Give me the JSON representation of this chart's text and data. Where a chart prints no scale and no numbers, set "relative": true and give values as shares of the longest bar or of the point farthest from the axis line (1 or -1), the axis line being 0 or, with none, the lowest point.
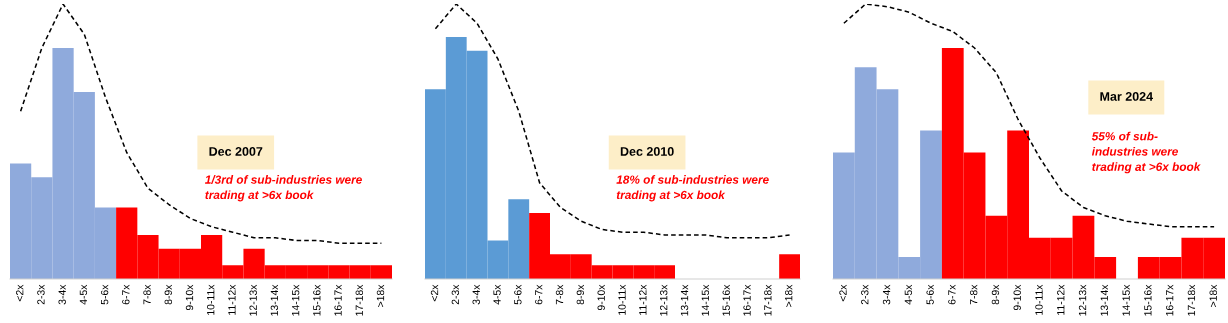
{
  "chart_data": [
    {
      "type": "bar",
      "relative": true,
      "categories": [
        "<2x",
        "2-3x",
        "3-4x",
        "4-5x",
        "5-6x",
        "6-7x",
        "7-8x",
        "8-9x",
        "9-10x",
        "10-11x",
        "11-12x",
        "12-13x",
        "13-14x",
        "14-15x",
        "15-16x",
        "16-17x",
        "17-18x",
        ">18x"
      ],
      "series": [
        {
          "values": [
            0.42,
            0.37,
            0.84,
            0.68,
            0.26,
            0.26,
            0.16,
            0.11,
            0.11,
            0.16,
            0.05,
            0.11,
            0.05,
            0.05,
            0.05,
            0.05,
            0.05,
            0.05
          ],
          "colors": [
            "#8faadc",
            "#8faadc",
            "#8faadc",
            "#8faadc",
            "#8faadc",
            "#ff0000",
            "#ff0000",
            "#ff0000",
            "#ff0000",
            "#ff0000",
            "#ff0000",
            "#ff0000",
            "#ff0000",
            "#ff0000",
            "#ff0000",
            "#ff0000",
            "#ff0000",
            "#ff0000"
          ]
        },
        {
          "type": "line",
          "color": "#000000",
          "line_style": "dashed",
          "values": [
            0.61,
            0.84,
            1.0,
            0.89,
            0.66,
            0.46,
            0.33,
            0.27,
            0.22,
            0.19,
            0.17,
            0.15,
            0.15,
            0.14,
            0.14,
            0.13,
            0.13,
            0.13
          ]
        }
      ],
      "annotations": [
        "Dec 2007",
        "1/3rd of sub-industries were\ntrading at >6x book"
      ]
    },
    {
      "type": "bar",
      "relative": true,
      "categories": [
        "<2x",
        "2-3x",
        "3-4x",
        "4-5x",
        "5-6x",
        "6-7x",
        "7-8x",
        "8-9x",
        "9-10x",
        "10-11x",
        "11-12x",
        "12-13x",
        "13-14x",
        "14-15x",
        "15-16x",
        "16-17x",
        "17-18x",
        ">18x"
      ],
      "series": [
        {
          "values": [
            0.69,
            0.88,
            0.83,
            0.14,
            0.29,
            0.24,
            0.09,
            0.09,
            0.05,
            0.05,
            0.05,
            0.05,
            0,
            0,
            0,
            0,
            0,
            0.09
          ],
          "colors": [
            "#5b9bd5",
            "#5b9bd5",
            "#5b9bd5",
            "#5b9bd5",
            "#5b9bd5",
            "#ff0000",
            "#ff0000",
            "#ff0000",
            "#ff0000",
            "#ff0000",
            "#ff0000",
            "#ff0000",
            null,
            null,
            null,
            null,
            null,
            "#ff0000"
          ]
        },
        {
          "type": "line",
          "color": "#000000",
          "line_style": "dashed",
          "values": [
            0.91,
            1.0,
            0.93,
            0.8,
            0.61,
            0.35,
            0.26,
            0.21,
            0.18,
            0.17,
            0.17,
            0.16,
            0.16,
            0.16,
            0.15,
            0.15,
            0.15,
            0.16
          ]
        }
      ],
      "annotations": [
        "Dec 2010",
        "18% of sub-industries were\ntrading at >6x book"
      ]
    },
    {
      "type": "bar",
      "relative": true,
      "categories": [
        "<2x",
        "2-3x",
        "3-4x",
        "4-5x",
        "5-6x",
        "6-7x",
        "7-8x",
        "8-9x",
        "9-10x",
        "10-11x",
        "11-12x",
        "12-13x",
        "13-14x",
        "14-15x",
        "15-16x",
        "16-17x",
        "17-18x",
        ">18x"
      ],
      "series": [
        {
          "values": [
            0.46,
            0.77,
            0.69,
            0.08,
            0.54,
            0.84,
            0.46,
            0.23,
            0.54,
            0.15,
            0.15,
            0.23,
            0.08,
            0,
            0.08,
            0.08,
            0.15,
            0.15
          ],
          "colors": [
            "#8faadc",
            "#8faadc",
            "#8faadc",
            "#8faadc",
            "#8faadc",
            "#ff0000",
            "#ff0000",
            "#ff0000",
            "#ff0000",
            "#ff0000",
            "#ff0000",
            "#ff0000",
            "#ff0000",
            null,
            "#ff0000",
            "#ff0000",
            "#ff0000",
            "#ff0000"
          ]
        },
        {
          "type": "line",
          "color": "#000000",
          "line_style": "dashed",
          "values": [
            0.93,
            1.0,
            0.99,
            0.97,
            0.93,
            0.9,
            0.84,
            0.75,
            0.58,
            0.44,
            0.32,
            0.26,
            0.23,
            0.21,
            0.2,
            0.19,
            0.19,
            0.19
          ]
        }
      ],
      "annotations": [
        "Mar 2024",
        "55% of sub-\nindustries were\ntrading at >6x book"
      ]
    }
  ]
}
